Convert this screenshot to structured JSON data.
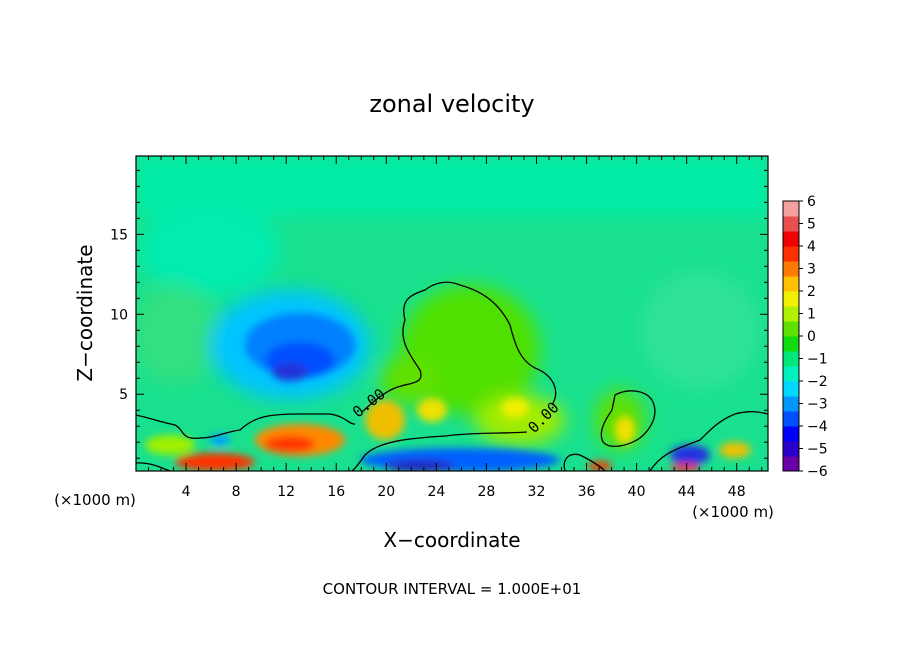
{
  "chart_data": {
    "type": "heatmap",
    "title": "zonal velocity",
    "xlabel": "X−coordinate",
    "ylabel": "Z−coordinate",
    "x_unit_left": "(×1000 m)",
    "x_unit_right": "(×1000 m)",
    "footer": "CONTOUR INTERVAL = 1.000E+01",
    "xlim": [
      0,
      50.5
    ],
    "ylim": [
      0.2,
      19.9
    ],
    "x_ticks": [
      4,
      8,
      12,
      16,
      20,
      24,
      28,
      32,
      36,
      40,
      44,
      48
    ],
    "y_ticks": [
      5,
      10,
      15
    ],
    "contour_labels": [
      {
        "text": "0.00",
        "x": 18.6,
        "z": 4.4
      },
      {
        "text": "0.00",
        "x": 33.1,
        "z": 3.5
      }
    ],
    "colorbar": {
      "min": -6,
      "max": 6,
      "tick_values": [
        6,
        5,
        4,
        3,
        2,
        1,
        0,
        -1,
        -2,
        -3,
        -4,
        -5,
        -6
      ],
      "tick_labels": [
        "6",
        "5",
        "4",
        "3",
        "2",
        "1",
        "0",
        "−1",
        "−2",
        "−3",
        "−4",
        "−5",
        "−6"
      ],
      "colors": [
        "#6a00a8",
        "#2a00c8",
        "#0000ff",
        "#0050ff",
        "#0098ff",
        "#00d8ff",
        "#00f0c0",
        "#00e87a",
        "#10dc10",
        "#60e000",
        "#b0f000",
        "#f0f000",
        "#ffc000",
        "#ff7a00",
        "#ff3000",
        "#f00000",
        "#e85050",
        "#f5a0a0"
      ]
    },
    "features": [
      {
        "desc": "negative core",
        "x": 13,
        "z": 7,
        "value": -3.5
      },
      {
        "desc": "strong positive near surface",
        "x": 11.5,
        "z": 1.5,
        "value": 4
      },
      {
        "desc": "positive upper lobe",
        "x": 24,
        "z": 8,
        "value": 1.5
      },
      {
        "desc": "surface negative band",
        "x": 26,
        "z": 0.6,
        "value": -4
      },
      {
        "desc": "surface negative band east",
        "x": 43,
        "z": 1.2,
        "value": -3
      }
    ]
  }
}
